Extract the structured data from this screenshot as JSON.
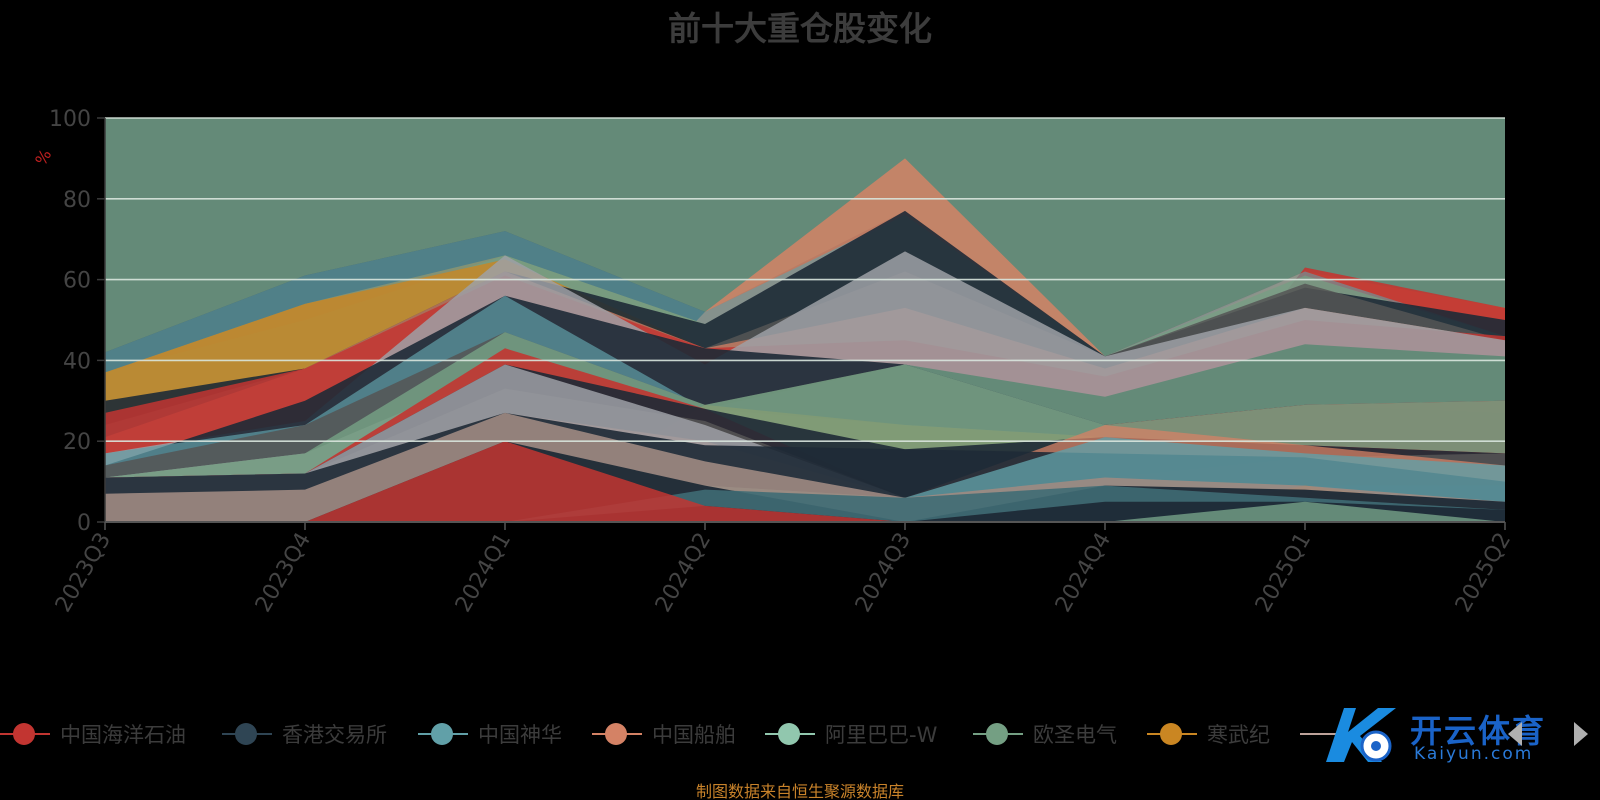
{
  "title": "前十大重仓股变化",
  "footer": "制图数据来自恒生聚源数据库",
  "watermark": {
    "brand": "开云体育",
    "site": "Kaiyun.com"
  },
  "chart_data": {
    "type": "area",
    "stacked": false,
    "title": "前十大重仓股变化",
    "ylabel": "%",
    "xlabel": "",
    "ylim": [
      0,
      100
    ],
    "yticks": [
      "0",
      "20",
      "40",
      "60",
      "80",
      "100"
    ],
    "grid": true,
    "legend_position": "bottom",
    "categories": [
      "2023Q3",
      "2023Q4",
      "2024Q1",
      "2024Q2",
      "2024Q3",
      "2024Q4",
      "2025Q1",
      "2025Q2"
    ],
    "background_color": "#648a78",
    "series": [
      {
        "name": "中国海洋石油",
        "color": "#c23531",
        "values": [
          30,
          38,
          61,
          43,
          0,
          0,
          63,
          53
        ]
      },
      {
        "name": "香港交易所",
        "color": "#2f4554",
        "values": [
          30,
          38,
          61,
          43,
          77,
          41,
          59,
          50
        ]
      },
      {
        "name": "中国神华",
        "color": "#61a0a8",
        "values": [
          42,
          61,
          72,
          52,
          76,
          41,
          62,
          46
        ]
      },
      {
        "name": "中国船舶",
        "color": "#d48265",
        "values": [
          21,
          38,
          62,
          43,
          90,
          41,
          62,
          46
        ]
      },
      {
        "name": "阿里巴巴-W",
        "color": "#91c7ae",
        "values": [
          37,
          61,
          65,
          49,
          67,
          41,
          53,
          46
        ]
      },
      {
        "name": "欧圣电气",
        "color": "#749f83",
        "values": [
          37,
          42,
          66,
          43,
          62,
          31,
          58,
          46
        ]
      },
      {
        "name": "寒武纪",
        "color": "#ca8622",
        "values": [
          37,
          54,
          65,
          43,
          23,
          21,
          50,
          46
        ]
      },
      {
        "name": "",
        "color": "#bda29a",
        "values": [
          21,
          37,
          56,
          43,
          53,
          38,
          53,
          45
        ]
      }
    ],
    "visible_legend_entries": [
      "中国海洋石油",
      "香港交易所",
      "中国神华",
      "中国船舶",
      "阿里巴巴-W",
      "欧圣电气",
      "寒武纪"
    ],
    "layers": [
      {
        "fill": "#2f4554",
        "opacity": 0.85,
        "values": [
          42,
          61,
          72,
          52,
          77,
          41,
          62,
          50
        ]
      },
      {
        "fill": "#ca8622",
        "opacity": 0.85,
        "values": [
          37,
          54,
          66,
          49,
          76,
          40,
          62,
          53
        ]
      },
      {
        "fill": "#d48265",
        "opacity": 0.85,
        "values": [
          0,
          0,
          0,
          52,
          90,
          41,
          62,
          53
        ]
      },
      {
        "fill": "#c23531",
        "opacity": 0.9,
        "values": [
          0,
          0,
          0,
          0,
          0,
          0,
          63,
          53
        ]
      },
      {
        "fill": "#61a0a8",
        "opacity": 0.6,
        "values": [
          42,
          61,
          72,
          52,
          76,
          41,
          62,
          46
        ]
      },
      {
        "fill": "#749f83",
        "opacity": 0.7,
        "values": [
          37,
          50,
          66,
          49,
          76,
          41,
          61,
          46
        ]
      },
      {
        "fill": "#ca8622",
        "opacity": 0.8,
        "values": [
          37,
          54,
          65,
          43,
          0,
          0,
          50,
          46
        ]
      },
      {
        "fill": "#1e2a36",
        "opacity": 0.9,
        "values": [
          30,
          38,
          62,
          49,
          77,
          41,
          58,
          50
        ]
      },
      {
        "fill": "#555555",
        "opacity": 0.85,
        "values": [
          24,
          38,
          61,
          43,
          62,
          41,
          59,
          45
        ]
      },
      {
        "fill": "#d48265",
        "opacity": 0.75,
        "values": [
          21,
          38,
          62,
          43,
          53,
          38,
          53,
          45
        ]
      },
      {
        "fill": "#c23531",
        "opacity": 0.85,
        "values": [
          27,
          38,
          61,
          43,
          45,
          36,
          50,
          46
        ]
      },
      {
        "fill": "#9ea0a6",
        "opacity": 0.85,
        "values": [
          17,
          25,
          66,
          39,
          67,
          41,
          53,
          45
        ]
      },
      {
        "fill": "#648a78",
        "opacity": 1,
        "values": [
          0,
          0,
          0,
          0,
          39,
          31,
          44,
          41
        ]
      },
      {
        "fill": "#1e2a36",
        "opacity": 0.9,
        "values": [
          14,
          30,
          56,
          43,
          39,
          24,
          29,
          27
        ]
      },
      {
        "fill": "#61a0a8",
        "opacity": 0.7,
        "values": [
          17,
          24,
          56,
          28,
          39,
          24,
          29,
          30
        ]
      },
      {
        "fill": "#555555",
        "opacity": 0.85,
        "values": [
          14,
          24,
          47,
          29,
          39,
          24,
          29,
          30
        ]
      },
      {
        "fill": "#c23531",
        "opacity": 0.85,
        "values": [
          0,
          0,
          0,
          0,
          0,
          24,
          29,
          30
        ]
      },
      {
        "fill": "#9ea0a6",
        "opacity": 0.85,
        "values": [
          11,
          17,
          38,
          28,
          24,
          21,
          19,
          17
        ]
      },
      {
        "fill": "#ca8622",
        "opacity": 0.85,
        "values": [
          0,
          0,
          0,
          29,
          24,
          21,
          19,
          17
        ]
      },
      {
        "fill": "#749f83",
        "opacity": 0.85,
        "values": [
          11,
          17,
          47,
          29,
          39,
          24,
          29,
          30
        ]
      },
      {
        "fill": "#c23531",
        "opacity": 0.9,
        "values": [
          11,
          12,
          43,
          28,
          6,
          21,
          19,
          17
        ]
      },
      {
        "fill": "#1e2a36",
        "opacity": 0.9,
        "values": [
          11,
          12,
          39,
          28,
          18,
          21,
          19,
          17
        ]
      },
      {
        "fill": "#555555",
        "opacity": 0.85,
        "values": [
          11,
          12,
          33,
          25,
          6,
          11,
          16,
          17
        ]
      },
      {
        "fill": "#d48265",
        "opacity": 0.75,
        "values": [
          11,
          12,
          27,
          20,
          6,
          24,
          19,
          14
        ]
      },
      {
        "fill": "#9ea0a6",
        "opacity": 0.85,
        "values": [
          11,
          12,
          39,
          24,
          6,
          11,
          9,
          9
        ]
      },
      {
        "fill": "#1e2a36",
        "opacity": 0.9,
        "values": [
          11,
          12,
          27,
          19,
          18,
          17,
          16,
          10
        ]
      },
      {
        "fill": "#61a0a8",
        "opacity": 0.8,
        "values": [
          0,
          0,
          0,
          9,
          6,
          21,
          17,
          14
        ]
      },
      {
        "fill": "#749f83",
        "opacity": 0.9,
        "values": [
          0,
          0,
          0,
          9,
          6,
          9,
          8,
          3
        ]
      },
      {
        "fill": "#ca8622",
        "opacity": 0.85,
        "values": [
          0,
          0,
          0,
          0,
          0,
          0,
          9,
          3
        ]
      },
      {
        "fill": "#9e8a82",
        "opacity": 0.9,
        "values": [
          7,
          8,
          27,
          15,
          6,
          11,
          9,
          5
        ]
      },
      {
        "fill": "#1e2a36",
        "opacity": 0.95,
        "values": [
          0,
          0,
          20,
          9,
          0,
          9,
          8,
          5
        ]
      },
      {
        "fill": "#3f6b74",
        "opacity": 0.9,
        "values": [
          0,
          0,
          0,
          8,
          6,
          9,
          6,
          3
        ]
      },
      {
        "fill": "#1e2a36",
        "opacity": 0.95,
        "values": [
          0,
          0,
          0,
          4,
          0,
          5,
          5,
          3
        ]
      },
      {
        "fill": "#648a78",
        "opacity": 1,
        "values": [
          0,
          0,
          0,
          0,
          0,
          0,
          5,
          0
        ]
      },
      {
        "fill": "#c23531",
        "opacity": 0.85,
        "values": [
          0,
          0,
          20,
          4,
          0,
          0,
          0,
          0
        ]
      }
    ]
  }
}
